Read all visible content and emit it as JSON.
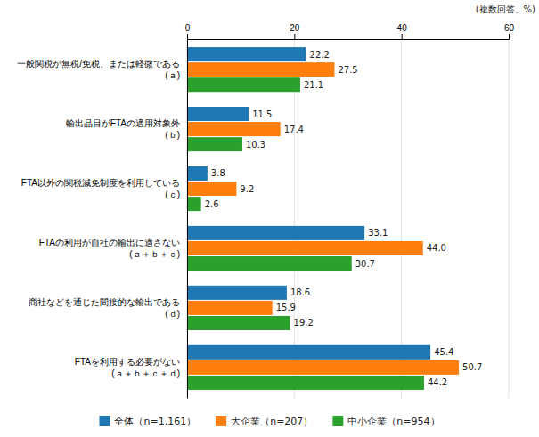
{
  "chart_data": {
    "type": "bar",
    "orientation": "horizontal",
    "categories": [
      "一般関税が無税/免税、または軽微である\n(ａ)",
      "輸出品目がFTAの適用対象外\n(ｂ)",
      "FTA以外の関税減免制度を利用している\n(ｃ)",
      "FTAの利用が自社の輸出に適さない\n(ａ＋ｂ＋ｃ)",
      "商社などを通じた間接的な輸出である\n(ｄ)",
      "FTAを利用する必要がない\n(ａ＋ｂ＋ｃ＋ｄ)"
    ],
    "series": [
      {
        "name": "全体（n=1,161）",
        "values": [
          22.2,
          11.5,
          3.8,
          33.1,
          18.6,
          45.4
        ],
        "value_labels": [
          "22.2",
          "11.5",
          "3.8",
          "33.1",
          "18.6",
          "45.4"
        ]
      },
      {
        "name": "大企業（n=207）",
        "values": [
          27.5,
          17.4,
          9.2,
          44.0,
          15.9,
          50.7
        ],
        "value_labels": [
          "27.5",
          "17.4",
          "9.2",
          "44.0",
          "15.9",
          "50.7"
        ]
      },
      {
        "name": "中小企業（n=954）",
        "values": [
          21.1,
          10.3,
          2.6,
          30.7,
          19.2,
          44.2
        ],
        "value_labels": [
          "21.1",
          "10.3",
          "2.6",
          "30.7",
          "19.2",
          "44.2"
        ]
      }
    ],
    "annotations": [
      "(複数回答、%)"
    ],
    "xlim": [
      0,
      60
    ],
    "xticks": [
      0,
      20,
      40,
      60
    ],
    "grid": true,
    "data_labels": true,
    "legend": "bottom"
  }
}
